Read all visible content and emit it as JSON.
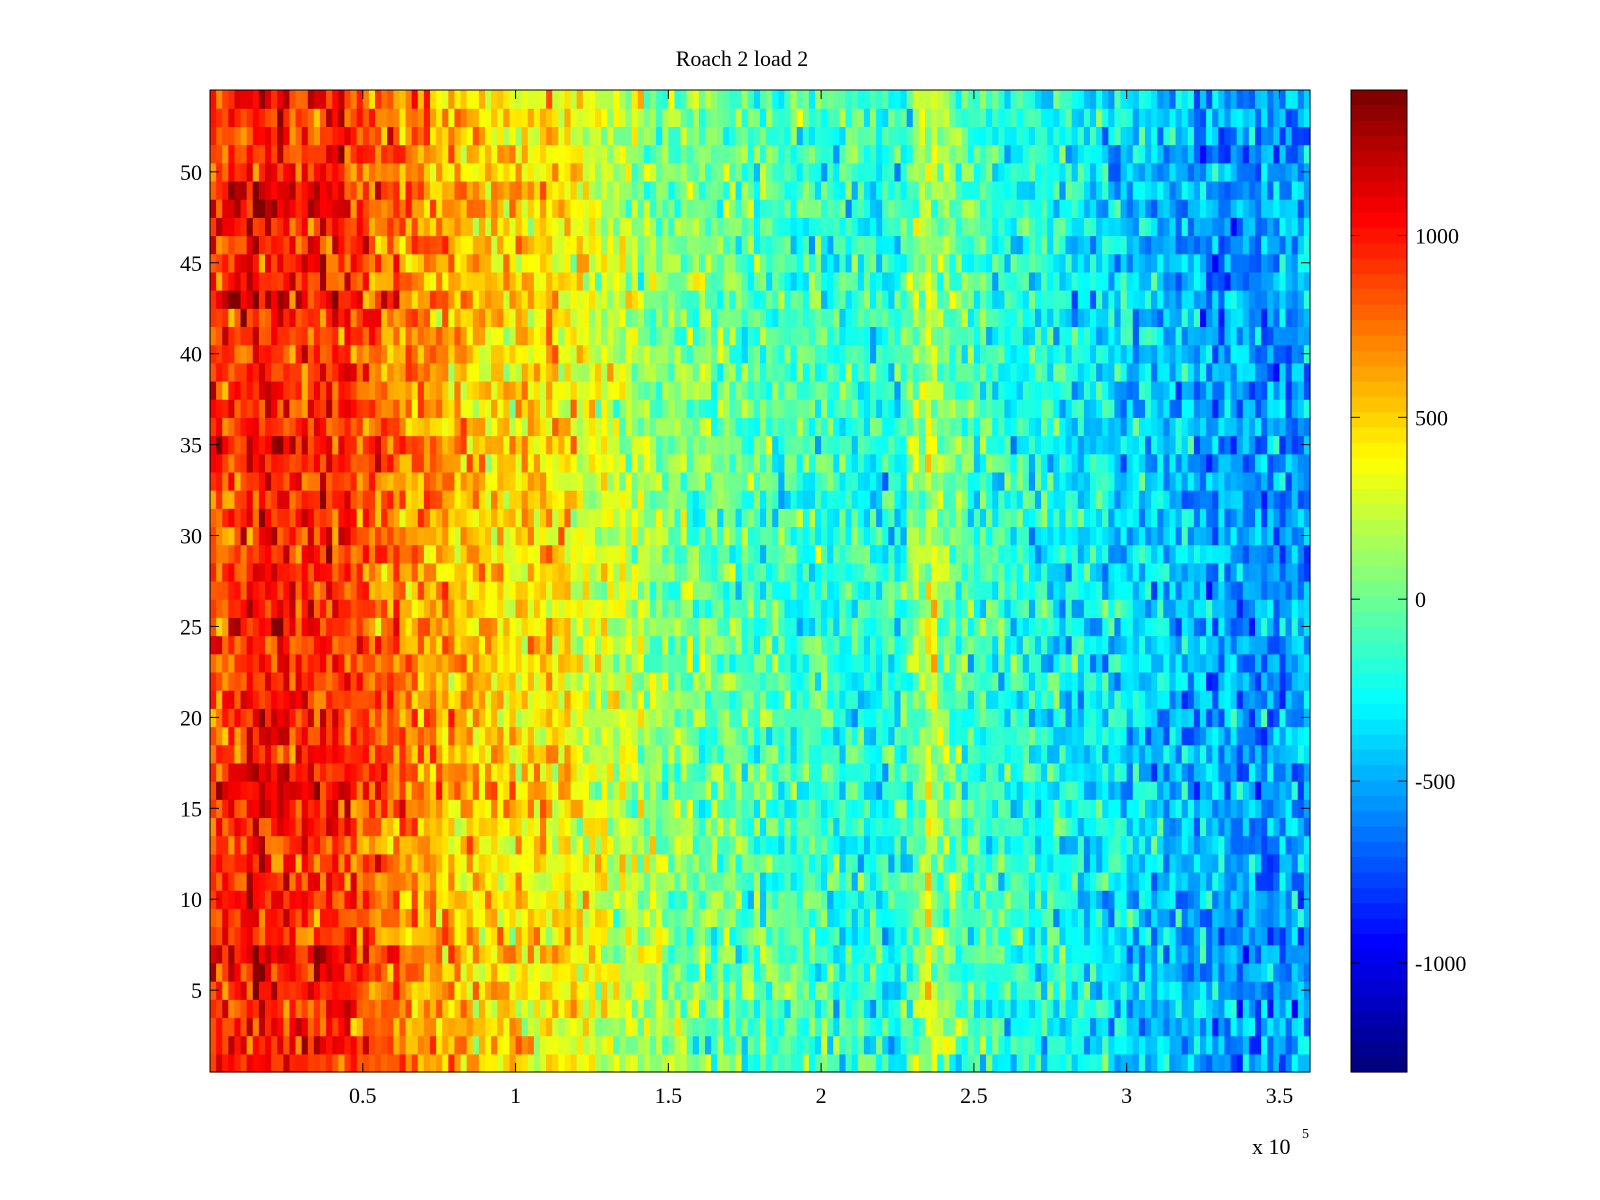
{
  "chart_data": {
    "type": "heatmap",
    "title": "Roach 2 load 2",
    "xlabel": "",
    "ylabel": "",
    "xlim": [
      0,
      360000
    ],
    "ylim": [
      0.5,
      54.5
    ],
    "rows": 54,
    "x_ticks": [
      50000,
      100000,
      150000,
      200000,
      250000,
      300000,
      350000
    ],
    "x_tick_labels": [
      "0.5",
      "1",
      "1.5",
      "2",
      "2.5",
      "3",
      "3.5"
    ],
    "x_multiplier_label": "x 10",
    "x_multiplier_exponent": "5",
    "y_ticks": [
      5,
      10,
      15,
      20,
      25,
      30,
      35,
      40,
      45,
      50
    ],
    "y_tick_labels": [
      "5",
      "10",
      "15",
      "20",
      "25",
      "30",
      "35",
      "40",
      "45",
      "50"
    ],
    "colorbar": {
      "colormap": "jet",
      "clim": [
        -1300,
        1400
      ],
      "ticks": [
        -1000,
        -500,
        0,
        500,
        1000
      ],
      "tick_labels": [
        "-1000",
        "-500",
        "0",
        "500",
        "1000"
      ]
    },
    "column_trend": [
      {
        "x": 0,
        "value": 850
      },
      {
        "x": 18000,
        "value": 1050
      },
      {
        "x": 30000,
        "value": 920
      },
      {
        "x": 40000,
        "value": 1000
      },
      {
        "x": 55000,
        "value": 800
      },
      {
        "x": 70000,
        "value": 650
      },
      {
        "x": 90000,
        "value": 480
      },
      {
        "x": 115000,
        "value": 450
      },
      {
        "x": 130000,
        "value": 260
      },
      {
        "x": 150000,
        "value": 60
      },
      {
        "x": 180000,
        "value": -60
      },
      {
        "x": 210000,
        "value": -180
      },
      {
        "x": 225000,
        "value": -260
      },
      {
        "x": 235000,
        "value": 250
      },
      {
        "x": 245000,
        "value": -80
      },
      {
        "x": 280000,
        "value": -280
      },
      {
        "x": 310000,
        "value": -420
      },
      {
        "x": 340000,
        "value": -560
      },
      {
        "x": 360000,
        "value": -500
      }
    ],
    "row_offsets": [
      {
        "row": 7,
        "value": 180
      },
      {
        "row": 16,
        "value": 150
      },
      {
        "row": 17,
        "value": 130
      },
      {
        "row": 35,
        "value": 120
      },
      {
        "row": 43,
        "value": 170
      },
      {
        "row": 48,
        "value": 160
      },
      {
        "row": 49,
        "value": 140
      }
    ],
    "noise_amplitude": 220
  }
}
